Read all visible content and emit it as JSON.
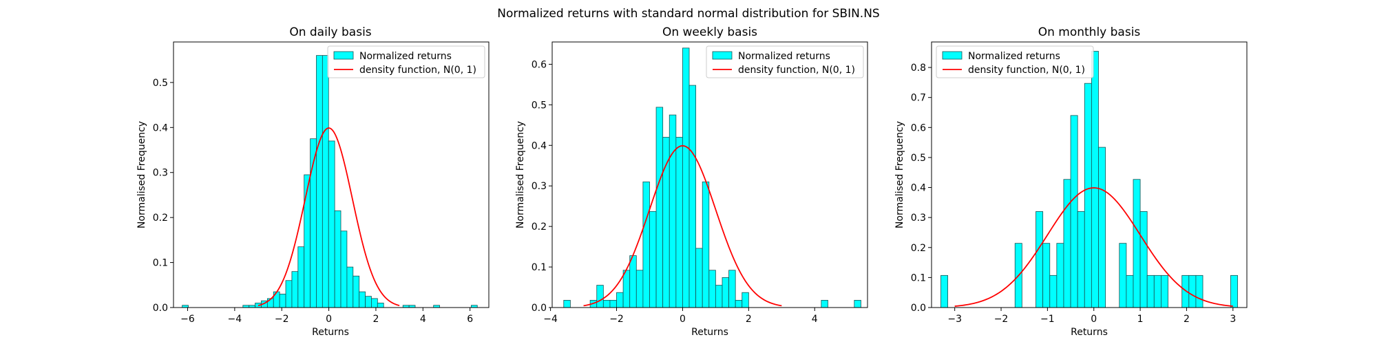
{
  "figure": {
    "suptitle": "Normalized returns with standard normal distribution for SBIN.NS"
  },
  "styles": {
    "bar_fill": "#00ffff",
    "bar_edge": "#1a4f4f",
    "line_color": "#ff0000"
  },
  "chart_data": [
    {
      "type": "bar",
      "title": "On daily basis",
      "xlabel": "Returns",
      "ylabel": "Normalised Frequency",
      "xlim": [
        -6.6,
        6.8
      ],
      "ylim": [
        0,
        0.59
      ],
      "xticks": [
        -6,
        -4,
        -2,
        0,
        2,
        4,
        6
      ],
      "xtick_labels": [
        "−6",
        "−4",
        "−2",
        "0",
        "2",
        "4",
        "6"
      ],
      "yticks": [
        0.0,
        0.1,
        0.2,
        0.3,
        0.4,
        0.5
      ],
      "ytick_labels": [
        "0.0",
        "0.1",
        "0.2",
        "0.3",
        "0.4",
        "0.5"
      ],
      "legend": {
        "placement": "upper right",
        "bars_label": "Normalized returns",
        "line_label": "density function, N(0, 1)"
      },
      "curve": {
        "x_range": [
          -3.0,
          3.0
        ],
        "mean": 0,
        "sd": 1
      },
      "bins": [
        {
          "x0": -6.23,
          "x1": -5.97,
          "y": 0.005
        },
        {
          "x0": -3.65,
          "x1": -3.39,
          "y": 0.005
        },
        {
          "x0": -3.39,
          "x1": -3.13,
          "y": 0.005
        },
        {
          "x0": -3.13,
          "x1": -2.87,
          "y": 0.01
        },
        {
          "x0": -2.87,
          "x1": -2.61,
          "y": 0.015
        },
        {
          "x0": -2.61,
          "x1": -2.35,
          "y": 0.02
        },
        {
          "x0": -2.35,
          "x1": -2.09,
          "y": 0.035
        },
        {
          "x0": -2.09,
          "x1": -1.83,
          "y": 0.03
        },
        {
          "x0": -1.83,
          "x1": -1.57,
          "y": 0.06
        },
        {
          "x0": -1.57,
          "x1": -1.31,
          "y": 0.08
        },
        {
          "x0": -1.31,
          "x1": -1.05,
          "y": 0.135
        },
        {
          "x0": -1.05,
          "x1": -0.79,
          "y": 0.295
        },
        {
          "x0": -0.79,
          "x1": -0.53,
          "y": 0.375
        },
        {
          "x0": -0.53,
          "x1": -0.27,
          "y": 0.56
        },
        {
          "x0": -0.27,
          "x1": -0.01,
          "y": 0.56
        },
        {
          "x0": -0.01,
          "x1": 0.25,
          "y": 0.37
        },
        {
          "x0": 0.25,
          "x1": 0.51,
          "y": 0.215
        },
        {
          "x0": 0.51,
          "x1": 0.77,
          "y": 0.17
        },
        {
          "x0": 0.77,
          "x1": 1.03,
          "y": 0.09
        },
        {
          "x0": 1.03,
          "x1": 1.29,
          "y": 0.07
        },
        {
          "x0": 1.29,
          "x1": 1.55,
          "y": 0.035
        },
        {
          "x0": 1.55,
          "x1": 1.81,
          "y": 0.025
        },
        {
          "x0": 1.81,
          "x1": 2.07,
          "y": 0.02
        },
        {
          "x0": 2.07,
          "x1": 2.33,
          "y": 0.01
        },
        {
          "x0": 3.15,
          "x1": 3.41,
          "y": 0.005
        },
        {
          "x0": 3.41,
          "x1": 3.67,
          "y": 0.005
        },
        {
          "x0": 4.45,
          "x1": 4.71,
          "y": 0.005
        },
        {
          "x0": 6.05,
          "x1": 6.31,
          "y": 0.005
        }
      ]
    },
    {
      "type": "bar",
      "title": "On weekly basis",
      "xlabel": "Returns",
      "ylabel": "Normalised Frequency",
      "xlim": [
        -3.95,
        5.6
      ],
      "ylim": [
        0,
        0.655
      ],
      "xticks": [
        -4,
        -2,
        0,
        2,
        4
      ],
      "xtick_labels": [
        "−4",
        "−2",
        "0",
        "2",
        "4"
      ],
      "yticks": [
        0.0,
        0.1,
        0.2,
        0.3,
        0.4,
        0.5,
        0.6
      ],
      "ytick_labels": [
        "0.0",
        "0.1",
        "0.2",
        "0.3",
        "0.4",
        "0.5",
        "0.6"
      ],
      "legend": {
        "placement": "upper right",
        "bars_label": "Normalized returns",
        "line_label": "density function, N(0, 1)"
      },
      "curve": {
        "x_range": [
          -3.0,
          3.0
        ],
        "mean": 0,
        "sd": 1
      },
      "bins": [
        {
          "x0": -3.6,
          "x1": -3.4,
          "y": 0.018
        },
        {
          "x0": -2.8,
          "x1": -2.6,
          "y": 0.018
        },
        {
          "x0": -2.6,
          "x1": -2.4,
          "y": 0.055
        },
        {
          "x0": -2.4,
          "x1": -2.2,
          "y": 0.018
        },
        {
          "x0": -2.2,
          "x1": -2.0,
          "y": 0.018
        },
        {
          "x0": -2.0,
          "x1": -1.8,
          "y": 0.037
        },
        {
          "x0": -1.8,
          "x1": -1.6,
          "y": 0.092
        },
        {
          "x0": -1.6,
          "x1": -1.4,
          "y": 0.128
        },
        {
          "x0": -1.4,
          "x1": -1.2,
          "y": 0.092
        },
        {
          "x0": -1.2,
          "x1": -1.0,
          "y": 0.31
        },
        {
          "x0": -1.0,
          "x1": -0.8,
          "y": 0.237
        },
        {
          "x0": -0.8,
          "x1": -0.6,
          "y": 0.494
        },
        {
          "x0": -0.6,
          "x1": -0.4,
          "y": 0.42
        },
        {
          "x0": -0.4,
          "x1": -0.2,
          "y": 0.475
        },
        {
          "x0": -0.2,
          "x1": 0.0,
          "y": 0.42
        },
        {
          "x0": 0.0,
          "x1": 0.2,
          "y": 0.64
        },
        {
          "x0": 0.2,
          "x1": 0.4,
          "y": 0.548
        },
        {
          "x0": 0.4,
          "x1": 0.6,
          "y": 0.146
        },
        {
          "x0": 0.6,
          "x1": 0.8,
          "y": 0.31
        },
        {
          "x0": 0.8,
          "x1": 1.0,
          "y": 0.092
        },
        {
          "x0": 1.0,
          "x1": 1.2,
          "y": 0.055
        },
        {
          "x0": 1.2,
          "x1": 1.4,
          "y": 0.074
        },
        {
          "x0": 1.4,
          "x1": 1.6,
          "y": 0.092
        },
        {
          "x0": 1.6,
          "x1": 1.8,
          "y": 0.018
        },
        {
          "x0": 1.8,
          "x1": 2.0,
          "y": 0.037
        },
        {
          "x0": 4.2,
          "x1": 4.4,
          "y": 0.018
        },
        {
          "x0": 5.2,
          "x1": 5.4,
          "y": 0.018
        }
      ]
    },
    {
      "type": "bar",
      "title": "On monthly basis",
      "xlabel": "Returns",
      "ylabel": "Normalised Frequency",
      "xlim": [
        -3.5,
        3.3
      ],
      "ylim": [
        0,
        0.885
      ],
      "xticks": [
        -3,
        -2,
        -1,
        0,
        1,
        2,
        3
      ],
      "xtick_labels": [
        "−3",
        "−2",
        "−1",
        "0",
        "1",
        "2",
        "3"
      ],
      "yticks": [
        0.0,
        0.1,
        0.2,
        0.3,
        0.4,
        0.5,
        0.6,
        0.7,
        0.8
      ],
      "ytick_labels": [
        "0.0",
        "0.1",
        "0.2",
        "0.3",
        "0.4",
        "0.5",
        "0.6",
        "0.7",
        "0.8"
      ],
      "legend": {
        "placement": "upper left",
        "bars_label": "Normalized returns",
        "line_label": "density function, N(0, 1)"
      },
      "curve": {
        "x_range": [
          -3.0,
          3.0
        ],
        "mean": 0,
        "sd": 1
      },
      "bins": [
        {
          "x0": -3.3,
          "x1": -3.15,
          "y": 0.107
        },
        {
          "x0": -1.7,
          "x1": -1.55,
          "y": 0.214
        },
        {
          "x0": -1.25,
          "x1": -1.1,
          "y": 0.32
        },
        {
          "x0": -1.1,
          "x1": -0.95,
          "y": 0.214
        },
        {
          "x0": -0.95,
          "x1": -0.8,
          "y": 0.107
        },
        {
          "x0": -0.8,
          "x1": -0.65,
          "y": 0.214
        },
        {
          "x0": -0.65,
          "x1": -0.5,
          "y": 0.427
        },
        {
          "x0": -0.5,
          "x1": -0.35,
          "y": 0.64
        },
        {
          "x0": -0.35,
          "x1": -0.2,
          "y": 0.32
        },
        {
          "x0": -0.2,
          "x1": -0.05,
          "y": 0.747
        },
        {
          "x0": -0.05,
          "x1": 0.1,
          "y": 0.854
        },
        {
          "x0": 0.1,
          "x1": 0.25,
          "y": 0.534
        },
        {
          "x0": 0.55,
          "x1": 0.7,
          "y": 0.214
        },
        {
          "x0": 0.7,
          "x1": 0.85,
          "y": 0.107
        },
        {
          "x0": 0.85,
          "x1": 1.0,
          "y": 0.427
        },
        {
          "x0": 1.0,
          "x1": 1.15,
          "y": 0.32
        },
        {
          "x0": 1.15,
          "x1": 1.3,
          "y": 0.107
        },
        {
          "x0": 1.3,
          "x1": 1.45,
          "y": 0.107
        },
        {
          "x0": 1.45,
          "x1": 1.6,
          "y": 0.107
        },
        {
          "x0": 1.9,
          "x1": 2.05,
          "y": 0.107
        },
        {
          "x0": 2.05,
          "x1": 2.2,
          "y": 0.107
        },
        {
          "x0": 2.2,
          "x1": 2.35,
          "y": 0.107
        },
        {
          "x0": 2.95,
          "x1": 3.1,
          "y": 0.107
        }
      ]
    }
  ]
}
